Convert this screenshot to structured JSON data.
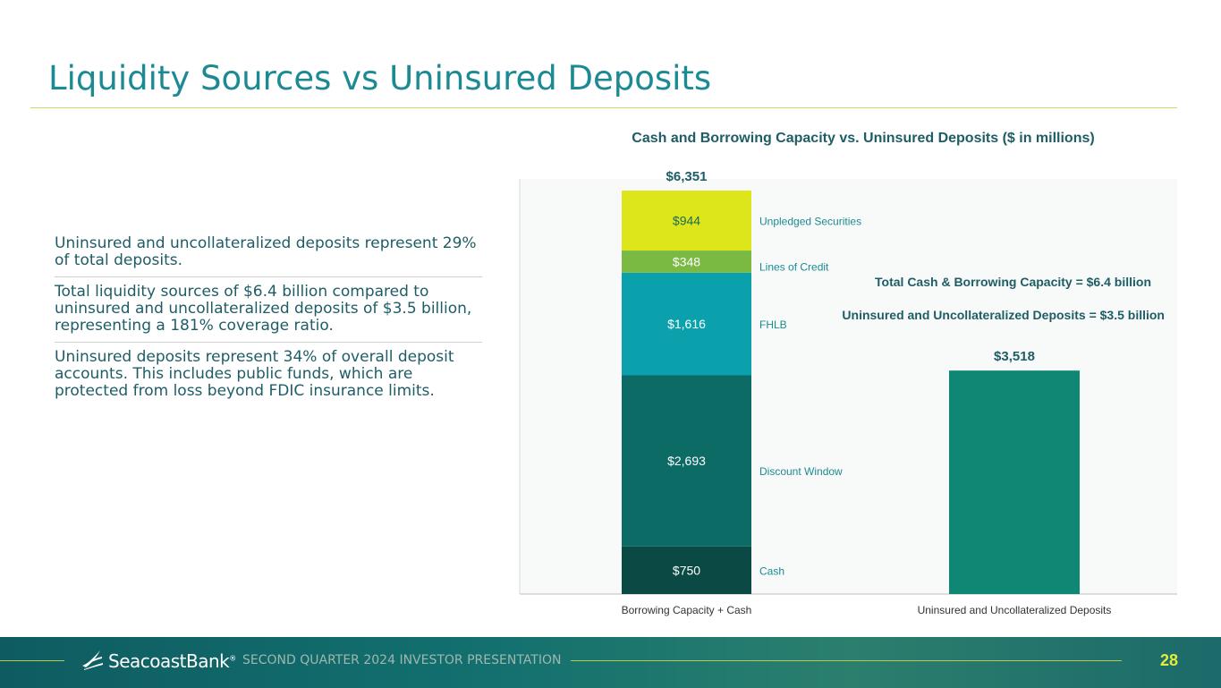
{
  "slide": {
    "title": "Liquidity Sources vs Uninsured Deposits",
    "bullets": [
      "Uninsured and uncollateralized deposits represent 29% of total deposits.",
      "Total liquidity sources of $6.4 billion compared to uninsured and uncollateralized deposits of $3.5 billion, representing a 181% coverage ratio.",
      "Uninsured deposits represent 34% of overall deposit accounts. This includes public funds, which are protected from loss beyond FDIC insurance limits."
    ]
  },
  "footer": {
    "logo_text": "SeacoastBank",
    "caption": "SECOND QUARTER 2024 INVESTOR PRESENTATION",
    "page_number": "28"
  },
  "chart_data": {
    "type": "bar",
    "title": "Cash and Borrowing Capacity vs. Uninsured Deposits ($ in millions)",
    "categories": [
      "Borrowing Capacity + Cash",
      "Uninsured and Uncollateralized Deposits"
    ],
    "stacked_series": [
      {
        "name": "Cash",
        "value": 750,
        "label": "$750",
        "color": "#0b4a44"
      },
      {
        "name": "Discount Window",
        "value": 2693,
        "label": "$2,693",
        "color": "#0d6b66"
      },
      {
        "name": "FHLB",
        "value": 1616,
        "label": "$1,616",
        "color": "#0aa1ad"
      },
      {
        "name": "Lines of Credit",
        "value": 348,
        "label": "$348",
        "color": "#7ab942"
      },
      {
        "name": "Unpledged Securities",
        "value": 944,
        "label": "$944",
        "color": "#dde51b"
      }
    ],
    "total_label": "$6,351",
    "uninsured": {
      "value": 3518,
      "label": "$3,518",
      "color": "#0e8774"
    },
    "annotations": [
      "Total Cash & Borrowing Capacity = $6.4 billion",
      "Uninsured and Uncollateralized Deposits = $3.5 billion"
    ],
    "ylim": [
      0,
      6500
    ],
    "series_label_color": "#1c8a93"
  }
}
